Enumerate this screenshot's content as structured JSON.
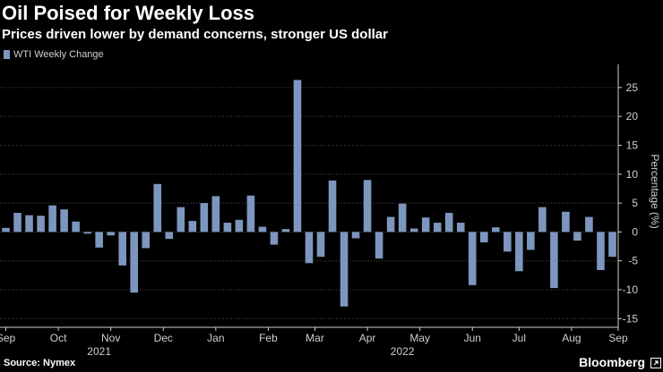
{
  "title": "Oil Poised for Weekly Loss",
  "subtitle": "Prices driven lower by demand concerns, stronger US dollar",
  "source": "Source: Nymex",
  "brand": "Bloomberg",
  "colors": {
    "bar": "#7d96be",
    "background": "#000000",
    "grid": "#4a4a4a"
  },
  "chart_data": {
    "type": "bar",
    "series": [
      {
        "name": "WTI Weekly Change",
        "values": [
          0.7,
          3.3,
          2.9,
          2.8,
          4.6,
          3.9,
          1.8,
          -0.3,
          -2.7,
          -0.6,
          -5.8,
          -10.5,
          -2.8,
          8.3,
          -1.2,
          4.3,
          1.9,
          5.0,
          6.2,
          1.6,
          2.1,
          6.3,
          0.9,
          -2.2,
          0.5,
          26.3,
          -5.4,
          -4.3,
          8.9,
          -12.9,
          -1.1,
          9.0,
          -4.6,
          2.6,
          4.9,
          0.6,
          2.5,
          1.6,
          3.3,
          1.6,
          -9.2,
          -1.8,
          0.8,
          -3.4,
          -6.8,
          -3.1,
          4.3,
          -9.7,
          3.5,
          -1.5,
          2.6,
          -6.6,
          -4.3
        ]
      }
    ],
    "x_tick_labels": [
      "Sep",
      "Oct",
      "Nov",
      "Dec",
      "Jan",
      "Feb",
      "Mar",
      "Apr",
      "May",
      "Jun",
      "Jul",
      "Aug",
      "Sep"
    ],
    "x_tick_positions": [
      0,
      4.5,
      9,
      13.5,
      18,
      22.5,
      26.5,
      31,
      35.5,
      40,
      44,
      48.5,
      52.5
    ],
    "year_labels": [
      {
        "label": "2021",
        "at": 8
      },
      {
        "label": "2022",
        "at": 34
      }
    ],
    "ylabel": "Percentage (%)",
    "yticks": [
      25,
      20,
      15,
      10,
      5,
      0,
      -5,
      -10,
      -15
    ],
    "ylim": [
      -16.5,
      29
    ],
    "grid": true,
    "legend_position": "top-left"
  }
}
